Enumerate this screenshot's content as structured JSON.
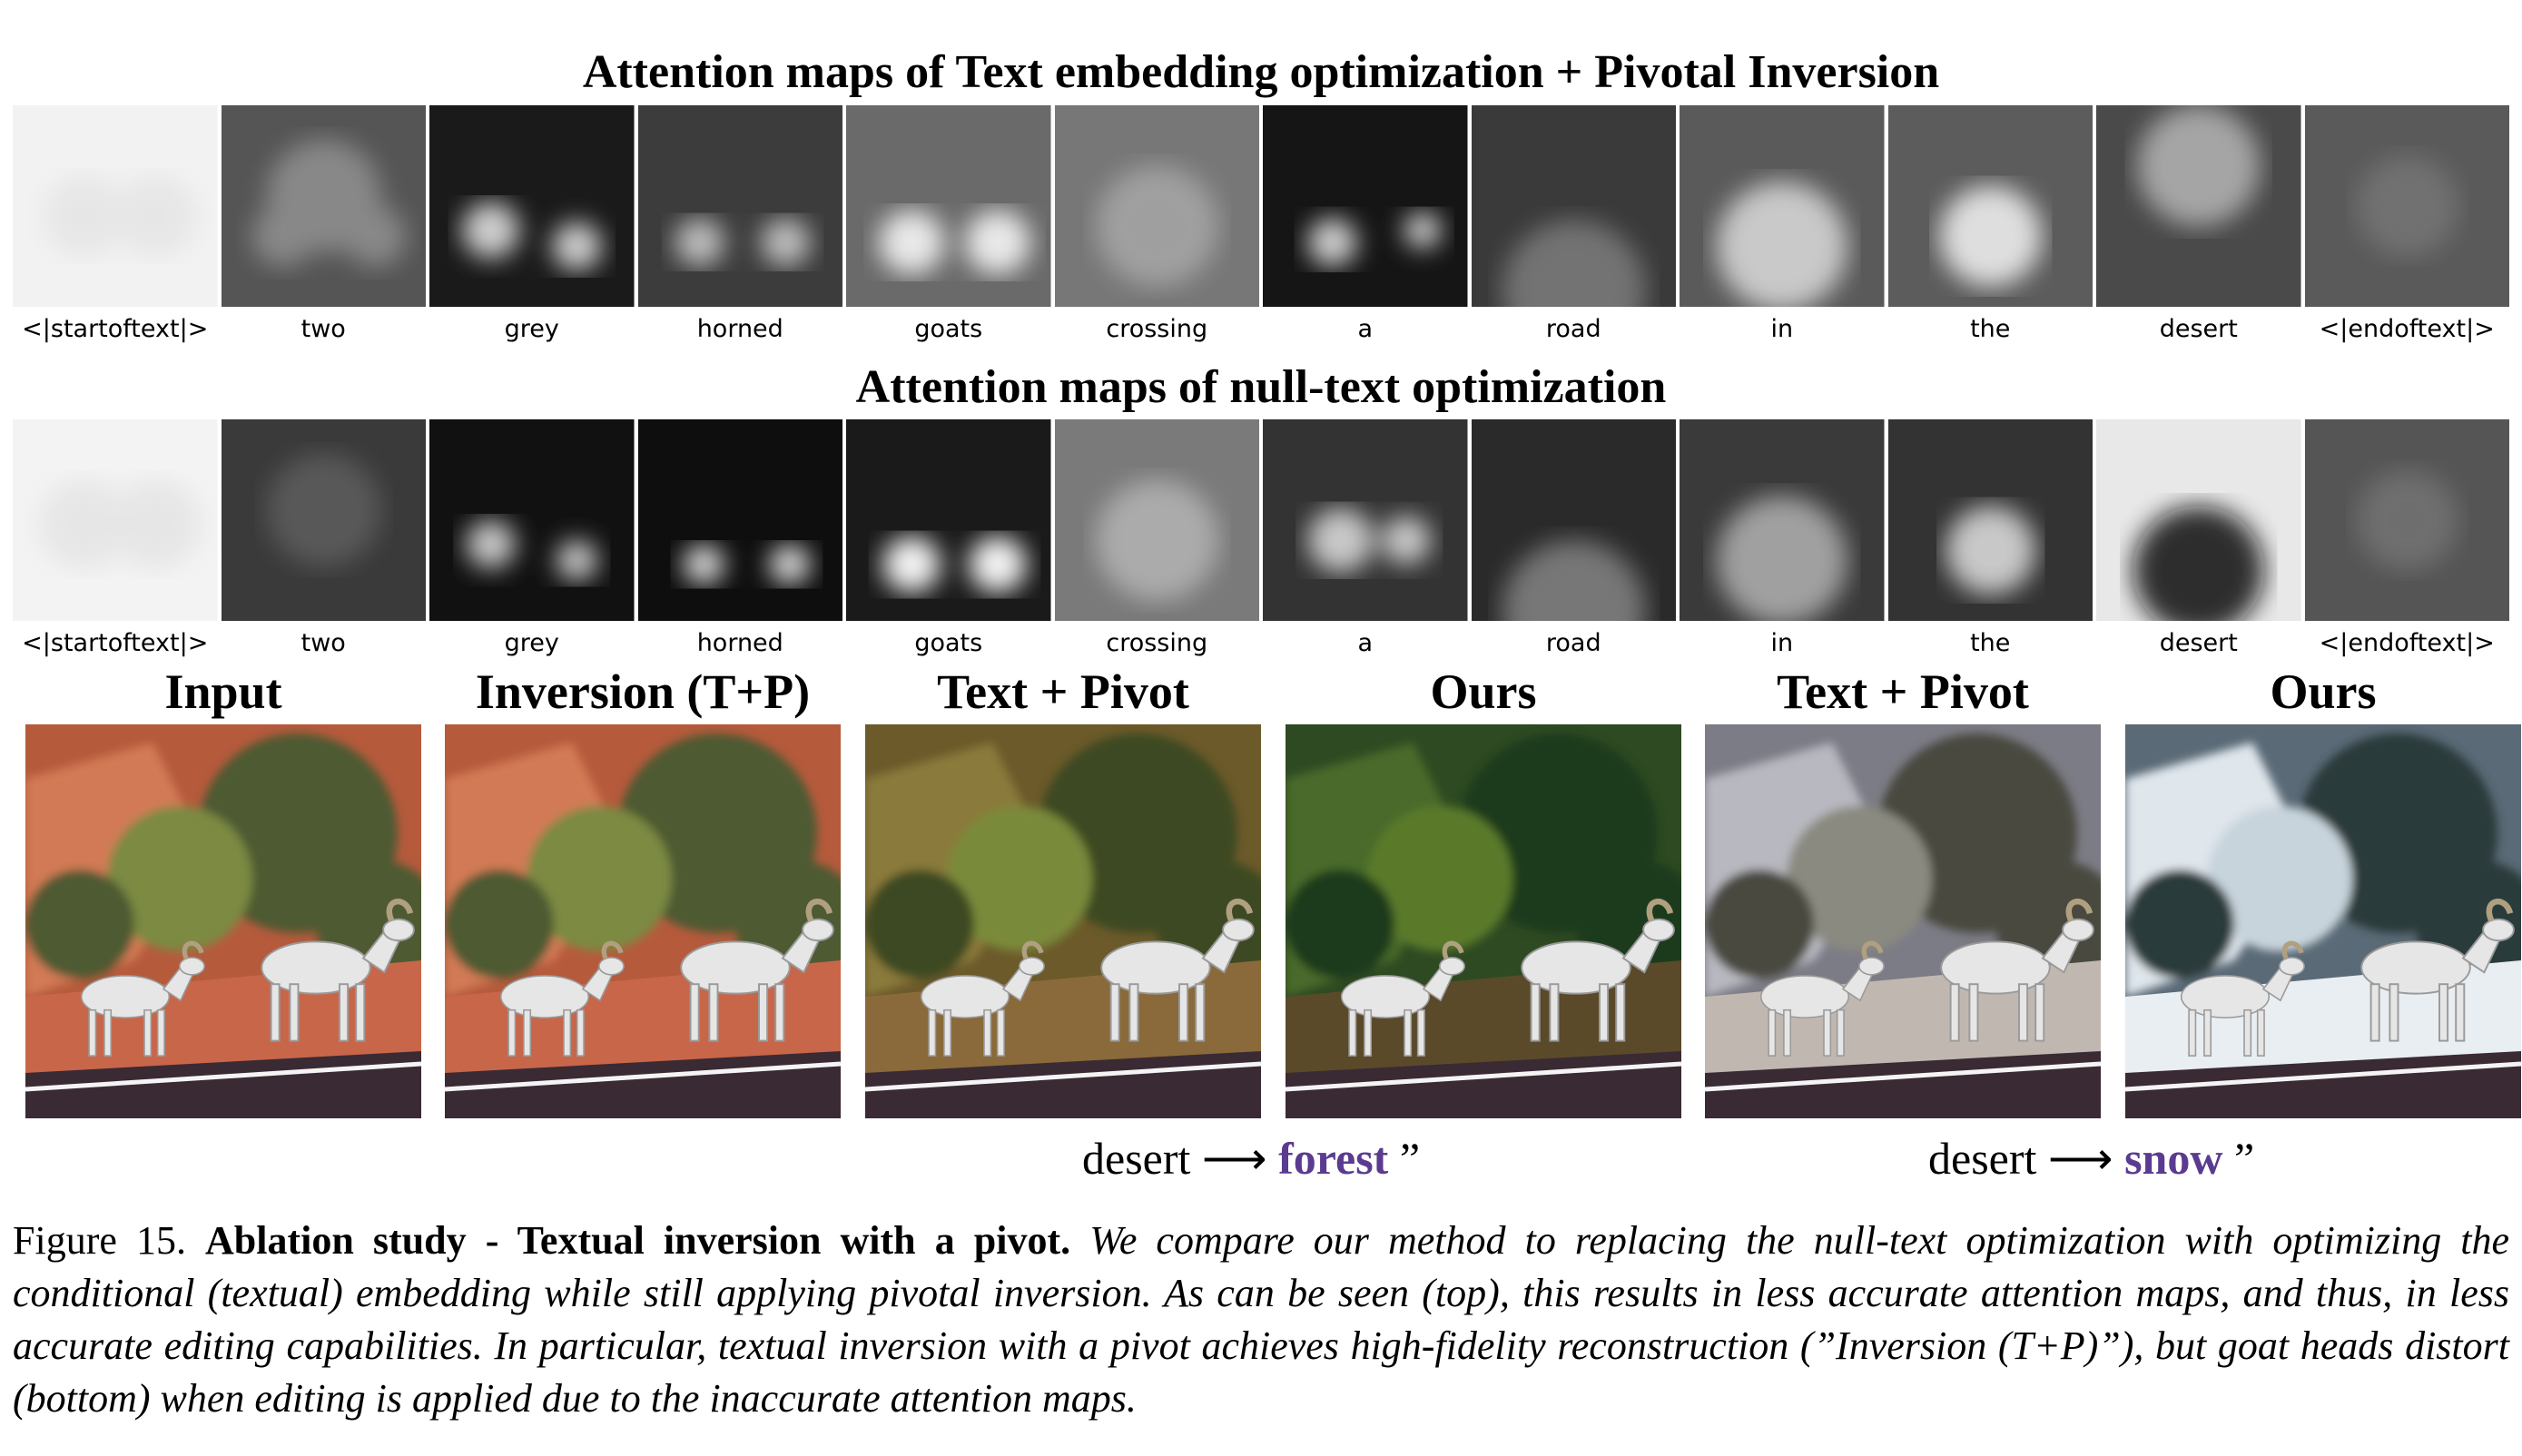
{
  "titles": {
    "top": "Attention maps of Text embedding optimization + Pivotal Inversion",
    "middle": "Attention maps of null-text optimization"
  },
  "tokens": [
    "<|startoftext|>",
    "two",
    "grey",
    "horned",
    "goats",
    "crossing",
    "a",
    "road",
    "in",
    "the",
    "desert",
    "<|endoftext|>"
  ],
  "columns": [
    {
      "label": "Input"
    },
    {
      "label": "Inversion (T+P)"
    },
    {
      "label": "Text + Pivot"
    },
    {
      "label": "Ours"
    },
    {
      "label": "Text + Pivot"
    },
    {
      "label": "Ours"
    }
  ],
  "edits": [
    {
      "source": "desert",
      "arrow": "⟶",
      "target": "forest",
      "quote": "”"
    },
    {
      "source": "desert",
      "arrow": "⟶",
      "target": "snow",
      "quote": "”"
    }
  ],
  "caption": {
    "label": "Figure 15.",
    "title": "Ablation study - Textual inversion with a pivot.",
    "text": "We compare our method to replacing the null-text optimization with optimizing the conditional (textual) embedding while still applying pivotal inversion. As can be seen (top), this results in less accurate attention maps, and thus, in less accurate editing capabilities. In particular, textual inversion with a pivot achieves high-fidelity reconstruction (”Inversion (T+P)”), but goat heads distort (bottom) when editing is applied due to the inaccurate attention maps."
  },
  "colors": {
    "edit_target": "#5b3b8f"
  }
}
